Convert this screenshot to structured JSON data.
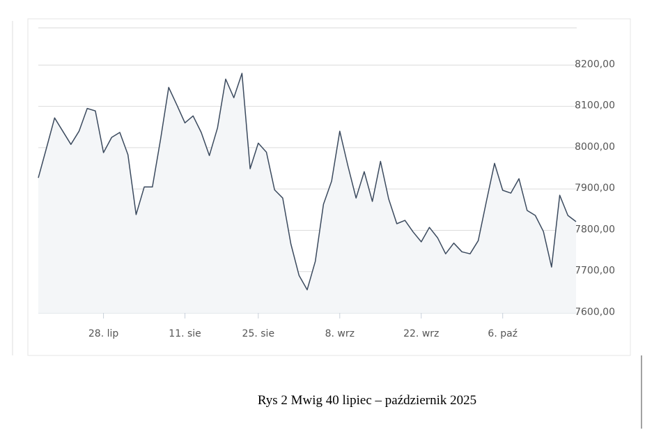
{
  "chart_data": {
    "type": "line",
    "caption": "Rys 2 Mwig 40 lipiec – październik 2025",
    "categories": [
      null,
      null,
      null,
      null,
      null,
      null,
      null,
      null,
      "28. lip",
      null,
      null,
      null,
      null,
      null,
      null,
      null,
      null,
      null,
      "11. sie",
      null,
      null,
      null,
      null,
      null,
      null,
      null,
      null,
      "25. sie",
      null,
      null,
      null,
      null,
      null,
      null,
      null,
      null,
      null,
      "8. wrz",
      null,
      null,
      null,
      null,
      null,
      null,
      null,
      null,
      null,
      "22. wrz",
      null,
      null,
      null,
      null,
      null,
      null,
      null,
      null,
      null,
      "6. paź",
      null,
      null,
      null,
      null,
      null,
      null,
      null,
      null,
      null
    ],
    "values": [
      7927,
      7999,
      8072,
      8040,
      8008,
      8040,
      8095,
      8089,
      7988,
      8025,
      8037,
      7983,
      7838,
      7905,
      7905,
      8020,
      8146,
      8104,
      8060,
      8077,
      8037,
      7981,
      8048,
      8166,
      8121,
      8180,
      7949,
      8011,
      7989,
      7898,
      7878,
      7767,
      7691,
      7656,
      7725,
      7863,
      7919,
      8040,
      7956,
      7878,
      7942,
      7870,
      7967,
      7876,
      7816,
      7824,
      7796,
      7772,
      7807,
      7782,
      7743,
      7769,
      7748,
      7743,
      7775,
      7870,
      7962,
      7897,
      7890,
      7925,
      7848,
      7836,
      7797,
      7711,
      7885,
      7836,
      7821
    ],
    "color": "#3b4a5e",
    "ylim": [
      7600,
      8290
    ],
    "yticks": [
      {
        "value": 7600,
        "label": "7600,00"
      },
      {
        "value": 7700,
        "label": "7700,00"
      },
      {
        "value": 7800,
        "label": "7800,00"
      },
      {
        "value": 7900,
        "label": "7900,00"
      },
      {
        "value": 8000,
        "label": "8000,00"
      },
      {
        "value": 8100,
        "label": "8100,00"
      },
      {
        "value": 8200,
        "label": "8200,00"
      }
    ],
    "grid": true
  }
}
